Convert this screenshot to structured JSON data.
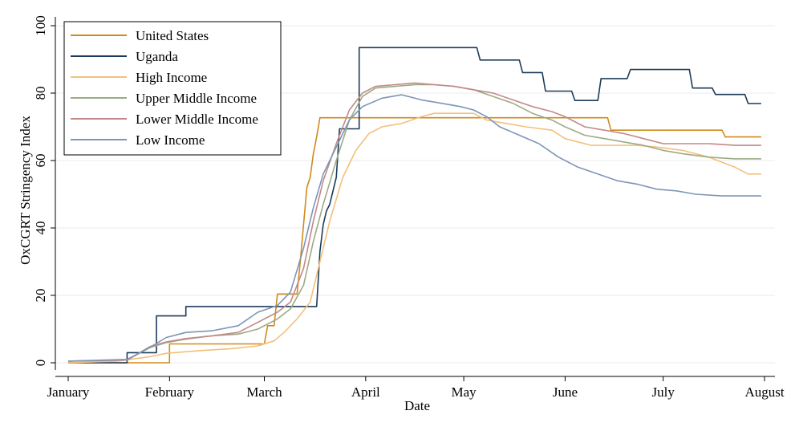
{
  "chart_data": {
    "type": "line",
    "title": "",
    "xlabel": "Date",
    "ylabel": "OxCGRT Stringency Index",
    "xlim": [
      0,
      213
    ],
    "ylim": [
      0,
      100
    ],
    "grid": true,
    "legend_position": "top-left",
    "x_ticks": [
      {
        "label": "January",
        "day": 0
      },
      {
        "label": "February",
        "day": 31
      },
      {
        "label": "March",
        "day": 60
      },
      {
        "label": "April",
        "day": 91
      },
      {
        "label": "May",
        "day": 121
      },
      {
        "label": "June",
        "day": 152
      },
      {
        "label": "July",
        "day": 182
      },
      {
        "label": "August",
        "day": 213
      }
    ],
    "y_ticks": [
      0,
      20,
      40,
      60,
      80,
      100
    ],
    "series": [
      {
        "name": "United States",
        "color": "#d08a1e",
        "points": [
          [
            0,
            0
          ],
          [
            31,
            0
          ],
          [
            31,
            5.6
          ],
          [
            60,
            5.6
          ],
          [
            61,
            11
          ],
          [
            63,
            11
          ],
          [
            64,
            20.4
          ],
          [
            70,
            20.4
          ],
          [
            71,
            30
          ],
          [
            72,
            41
          ],
          [
            73,
            52
          ],
          [
            74,
            55
          ],
          [
            75,
            62
          ],
          [
            76,
            67
          ],
          [
            77,
            72.7
          ],
          [
            165,
            72.7
          ],
          [
            166,
            69
          ],
          [
            200,
            69
          ],
          [
            201,
            67
          ],
          [
            212,
            67
          ]
        ]
      },
      {
        "name": "Uganda",
        "color": "#1c3b5a",
        "points": [
          [
            0,
            0
          ],
          [
            18,
            0
          ],
          [
            18,
            3
          ],
          [
            27,
            3
          ],
          [
            27,
            13.9
          ],
          [
            36,
            13.9
          ],
          [
            36,
            16.7
          ],
          [
            76,
            16.7
          ],
          [
            77,
            33
          ],
          [
            78,
            41
          ],
          [
            79,
            45
          ],
          [
            80,
            47
          ],
          [
            82,
            55
          ],
          [
            83,
            69.4
          ],
          [
            89,
            69.4
          ],
          [
            89,
            93.5
          ],
          [
            125,
            93.5
          ],
          [
            126,
            89.8
          ],
          [
            138,
            89.8
          ],
          [
            139,
            86.1
          ],
          [
            145,
            86.1
          ],
          [
            146,
            80.6
          ],
          [
            154,
            80.6
          ],
          [
            155,
            77.8
          ],
          [
            162,
            77.8
          ],
          [
            163,
            84.3
          ],
          [
            171,
            84.3
          ],
          [
            172,
            87
          ],
          [
            190,
            87
          ],
          [
            191,
            81.5
          ],
          [
            197,
            81.5
          ],
          [
            198,
            79.6
          ],
          [
            207,
            79.6
          ],
          [
            208,
            76.9
          ],
          [
            212,
            76.9
          ]
        ]
      },
      {
        "name": "High Income",
        "color": "#f3c07a",
        "points": [
          [
            0,
            0
          ],
          [
            15,
            0.5
          ],
          [
            25,
            1.8
          ],
          [
            30,
            2.8
          ],
          [
            40,
            3.6
          ],
          [
            50,
            4.2
          ],
          [
            58,
            5
          ],
          [
            63,
            6.5
          ],
          [
            66,
            9
          ],
          [
            70,
            13
          ],
          [
            74,
            18
          ],
          [
            77,
            30
          ],
          [
            80,
            42
          ],
          [
            84,
            55
          ],
          [
            88,
            63
          ],
          [
            92,
            68
          ],
          [
            96,
            70
          ],
          [
            102,
            71
          ],
          [
            108,
            73
          ],
          [
            112,
            74
          ],
          [
            120,
            74
          ],
          [
            124,
            74
          ],
          [
            128,
            72
          ],
          [
            134,
            71
          ],
          [
            140,
            70
          ],
          [
            148,
            69
          ],
          [
            152,
            66.5
          ],
          [
            160,
            64.5
          ],
          [
            168,
            64.5
          ],
          [
            174,
            64.5
          ],
          [
            180,
            64
          ],
          [
            188,
            63
          ],
          [
            196,
            61
          ],
          [
            204,
            58
          ],
          [
            208,
            56
          ],
          [
            212,
            56
          ]
        ]
      },
      {
        "name": "Upper Middle Income",
        "color": "#9cab84",
        "points": [
          [
            0,
            0.5
          ],
          [
            18,
            0.8
          ],
          [
            25,
            4.5
          ],
          [
            30,
            6
          ],
          [
            36,
            7
          ],
          [
            44,
            8
          ],
          [
            52,
            8.5
          ],
          [
            58,
            10
          ],
          [
            64,
            13
          ],
          [
            68,
            16
          ],
          [
            72,
            23
          ],
          [
            75,
            36
          ],
          [
            78,
            47
          ],
          [
            82,
            60
          ],
          [
            86,
            72
          ],
          [
            90,
            79
          ],
          [
            94,
            81.5
          ],
          [
            100,
            82
          ],
          [
            106,
            82.5
          ],
          [
            112,
            82.5
          ],
          [
            118,
            82
          ],
          [
            124,
            81
          ],
          [
            130,
            79
          ],
          [
            136,
            77
          ],
          [
            142,
            74
          ],
          [
            148,
            72
          ],
          [
            152,
            70
          ],
          [
            158,
            67.5
          ],
          [
            164,
            66.5
          ],
          [
            170,
            65.5
          ],
          [
            176,
            64.5
          ],
          [
            182,
            63
          ],
          [
            188,
            62
          ],
          [
            196,
            61
          ],
          [
            204,
            60.5
          ],
          [
            212,
            60.5
          ]
        ]
      },
      {
        "name": "Lower Middle Income",
        "color": "#c48888",
        "points": [
          [
            0,
            0.5
          ],
          [
            18,
            0.8
          ],
          [
            25,
            4.8
          ],
          [
            30,
            6.2
          ],
          [
            36,
            7.2
          ],
          [
            44,
            8
          ],
          [
            52,
            9
          ],
          [
            58,
            12
          ],
          [
            64,
            15
          ],
          [
            68,
            18
          ],
          [
            72,
            28
          ],
          [
            75,
            42
          ],
          [
            78,
            54
          ],
          [
            82,
            65
          ],
          [
            86,
            75
          ],
          [
            90,
            80
          ],
          [
            94,
            82
          ],
          [
            100,
            82.5
          ],
          [
            106,
            83
          ],
          [
            112,
            82.5
          ],
          [
            118,
            82
          ],
          [
            124,
            81
          ],
          [
            130,
            80
          ],
          [
            136,
            78
          ],
          [
            142,
            76
          ],
          [
            148,
            74.5
          ],
          [
            152,
            73
          ],
          [
            158,
            70
          ],
          [
            164,
            69
          ],
          [
            170,
            68
          ],
          [
            176,
            66.5
          ],
          [
            182,
            65
          ],
          [
            188,
            65
          ],
          [
            196,
            65
          ],
          [
            204,
            64.5
          ],
          [
            212,
            64.5
          ]
        ]
      },
      {
        "name": "Low Income",
        "color": "#7d95b8",
        "points": [
          [
            0,
            0.5
          ],
          [
            18,
            1
          ],
          [
            24,
            4
          ],
          [
            30,
            7.5
          ],
          [
            36,
            9
          ],
          [
            44,
            9.5
          ],
          [
            52,
            11
          ],
          [
            58,
            15
          ],
          [
            64,
            17
          ],
          [
            68,
            21
          ],
          [
            72,
            34
          ],
          [
            75,
            46
          ],
          [
            78,
            56
          ],
          [
            82,
            64
          ],
          [
            86,
            72
          ],
          [
            90,
            76
          ],
          [
            96,
            78.5
          ],
          [
            102,
            79.5
          ],
          [
            108,
            78
          ],
          [
            114,
            77
          ],
          [
            120,
            76
          ],
          [
            124,
            75
          ],
          [
            128,
            73
          ],
          [
            132,
            70
          ],
          [
            138,
            67.5
          ],
          [
            144,
            65
          ],
          [
            150,
            61
          ],
          [
            156,
            58
          ],
          [
            162,
            56
          ],
          [
            168,
            54
          ],
          [
            174,
            53
          ],
          [
            180,
            51.5
          ],
          [
            186,
            51
          ],
          [
            192,
            50
          ],
          [
            200,
            49.5
          ],
          [
            206,
            49.5
          ],
          [
            212,
            49.5
          ]
        ]
      }
    ]
  }
}
